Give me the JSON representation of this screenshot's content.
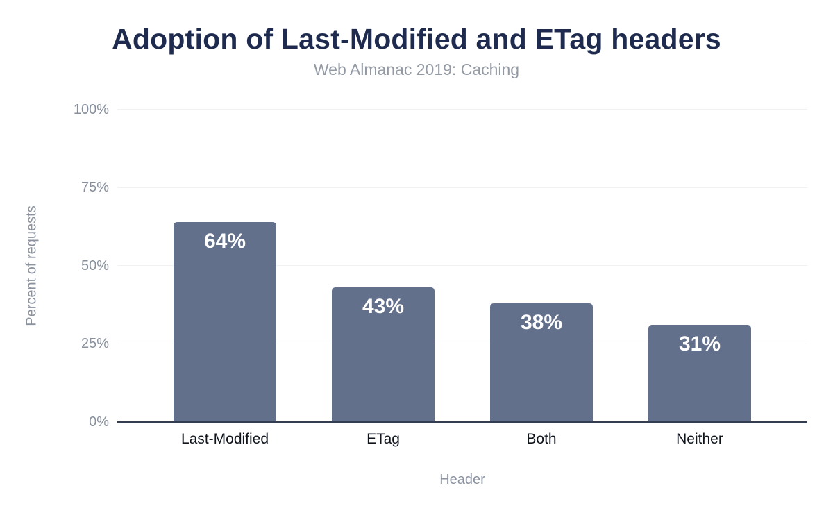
{
  "chart_data": {
    "type": "bar",
    "title": "Adoption of Last-Modified and ETag headers",
    "subtitle": "Web Almanac 2019: Caching",
    "categories": [
      "Last-Modified",
      "ETag",
      "Both",
      "Neither"
    ],
    "values": [
      64,
      43,
      38,
      31
    ],
    "value_labels": [
      "64%",
      "43%",
      "38%",
      "31%"
    ],
    "xlabel": "Header",
    "ylabel": "Percent of requests",
    "yticks": [
      "0%",
      "25%",
      "50%",
      "75%",
      "100%"
    ],
    "ytick_values": [
      0,
      25,
      50,
      75,
      100
    ],
    "ylim": [
      0,
      100
    ],
    "grid": "horizontal-light",
    "legend": "none",
    "colors": {
      "bar": "#63708c",
      "title": "#1e2b4e",
      "subtitle": "#949aa4",
      "y_tick_label": "#878f9c",
      "x_tick_label": "#10151d",
      "axis_title": "#8c93a0",
      "axis_line": "#333d4f",
      "gridline": "#f0f1f2",
      "bar_value_label": "#ffffff",
      "background": "#ffffff"
    }
  }
}
